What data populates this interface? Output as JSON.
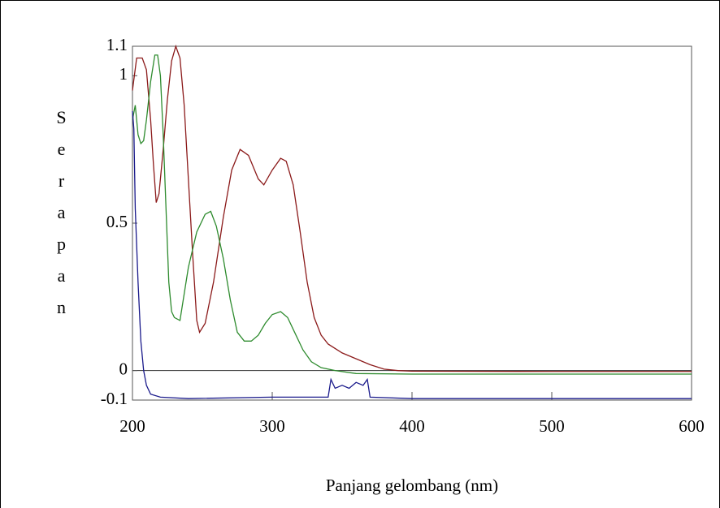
{
  "chart_data": {
    "type": "line",
    "x_label": "Panjang gelombang (nm)",
    "y_label": "Serapan",
    "xlim": [
      200,
      600
    ],
    "xticks": [
      200,
      300,
      400,
      500,
      600
    ],
    "ylim": [
      -0.1,
      1.1
    ],
    "yticks": [
      -0.1,
      0,
      0.5,
      1,
      1.1
    ],
    "series": [
      {
        "color": "#8b1a1a",
        "x": [
          200,
          203,
          207,
          210,
          213,
          215,
          217,
          219,
          222,
          225,
          228,
          231,
          234,
          237,
          240,
          243,
          246,
          248,
          252,
          258,
          265,
          271,
          277,
          283,
          290,
          294,
          300,
          306,
          310,
          315,
          320,
          325,
          330,
          335,
          340,
          350,
          360,
          370,
          380,
          390,
          400,
          500,
          600
        ],
        "values": [
          0.95,
          1.06,
          1.06,
          1.02,
          0.85,
          0.7,
          0.57,
          0.6,
          0.75,
          0.92,
          1.05,
          1.1,
          1.06,
          0.9,
          0.65,
          0.4,
          0.17,
          0.13,
          0.16,
          0.3,
          0.52,
          0.68,
          0.75,
          0.73,
          0.65,
          0.63,
          0.68,
          0.72,
          0.71,
          0.63,
          0.47,
          0.3,
          0.18,
          0.12,
          0.09,
          0.06,
          0.04,
          0.02,
          0.005,
          0,
          -0.002,
          -0.003,
          -0.003
        ]
      },
      {
        "color": "#2e8b2e",
        "x": [
          200,
          202,
          204,
          206,
          208,
          210,
          213,
          216,
          218,
          220,
          222,
          224,
          226,
          228,
          230,
          234,
          240,
          246,
          252,
          256,
          260,
          265,
          270,
          275,
          280,
          285,
          290,
          295,
          300,
          306,
          311,
          316,
          322,
          328,
          335,
          345,
          360,
          400,
          600
        ],
        "values": [
          0.85,
          0.9,
          0.8,
          0.77,
          0.78,
          0.85,
          0.98,
          1.07,
          1.07,
          1.0,
          0.8,
          0.55,
          0.3,
          0.2,
          0.18,
          0.17,
          0.35,
          0.47,
          0.53,
          0.54,
          0.49,
          0.38,
          0.24,
          0.13,
          0.1,
          0.1,
          0.12,
          0.16,
          0.19,
          0.2,
          0.18,
          0.13,
          0.07,
          0.03,
          0.01,
          0,
          -0.01,
          -0.012,
          -0.012
        ]
      },
      {
        "color": "#1a1a8b",
        "x": [
          200,
          201,
          202,
          204,
          206,
          208,
          210,
          213,
          220,
          240,
          300,
          340,
          342,
          345,
          350,
          355,
          360,
          365,
          368,
          370,
          400,
          600
        ],
        "values": [
          0.88,
          0.82,
          0.55,
          0.3,
          0.1,
          0,
          -0.05,
          -0.08,
          -0.09,
          -0.095,
          -0.09,
          -0.09,
          -0.03,
          -0.06,
          -0.05,
          -0.06,
          -0.04,
          -0.05,
          -0.03,
          -0.09,
          -0.095,
          -0.095
        ]
      }
    ]
  }
}
